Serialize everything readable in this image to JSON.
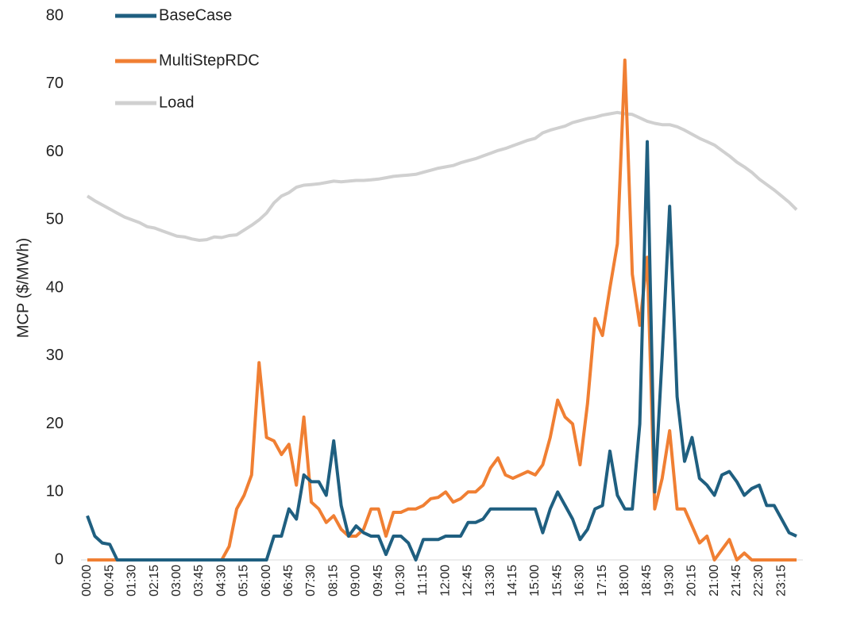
{
  "chart_data": {
    "type": "line",
    "y_label": "MCP ($/MWh)",
    "categories": [
      "00:00",
      null,
      null,
      "00:45",
      null,
      null,
      "01:30",
      null,
      null,
      "02:15",
      null,
      null,
      "03:00",
      null,
      null,
      "03:45",
      null,
      null,
      "04:30",
      null,
      null,
      "05:15",
      null,
      null,
      "06:00",
      null,
      null,
      "06:45",
      null,
      null,
      "07:30",
      null,
      null,
      "08:15",
      null,
      null,
      "09:00",
      null,
      null,
      "09:45",
      null,
      null,
      "10:30",
      null,
      null,
      "11:15",
      null,
      null,
      "12:00",
      null,
      null,
      "12:45",
      null,
      null,
      "13:30",
      null,
      null,
      "14:15",
      null,
      null,
      "15:00",
      null,
      null,
      "15:45",
      null,
      null,
      "16:30",
      null,
      null,
      "17:15",
      null,
      null,
      "18:00",
      null,
      null,
      "18:45",
      null,
      null,
      "19:30",
      null,
      null,
      "20:15",
      null,
      null,
      "21:00",
      null,
      null,
      "21:45",
      null,
      null,
      "22:30",
      null,
      null,
      "23:15",
      null,
      null
    ],
    "series": [
      {
        "name": "BaseCase",
        "color": "#1f5f80",
        "values": [
          6.5,
          3.5,
          2.5,
          2.3,
          0,
          0,
          0,
          0,
          0,
          0,
          0,
          0,
          0,
          0,
          0,
          0,
          0,
          0,
          0,
          0,
          0,
          0,
          0,
          0,
          0,
          3.5,
          3.5,
          7.5,
          6,
          12.5,
          11.5,
          11.5,
          9.5,
          17.5,
          8,
          3.5,
          5,
          4,
          3.5,
          3.5,
          0.8,
          3.5,
          3.5,
          2.5,
          0,
          3,
          3,
          3,
          3.5,
          3.5,
          3.5,
          5.5,
          5.5,
          6,
          7.5,
          7.5,
          7.5,
          7.5,
          7.5,
          7.5,
          7.5,
          4,
          7.5,
          10,
          8,
          6,
          3,
          4.5,
          7.5,
          8,
          16,
          9.5,
          7.5,
          7.5,
          20,
          61.5,
          10,
          30,
          52,
          24,
          14.5,
          18,
          12,
          11,
          9.5,
          12.5,
          13,
          11.5,
          9.5,
          10.5,
          11,
          8,
          8,
          6,
          4,
          3.5
        ]
      },
      {
        "name": "MultiStepRDC",
        "color": "#f07f33",
        "values": [
          0,
          0,
          0,
          0,
          0,
          0,
          0,
          0,
          0,
          0,
          0,
          0,
          0,
          0,
          0,
          0,
          0,
          0,
          0,
          2,
          7.5,
          9.5,
          12.5,
          29,
          18,
          17.5,
          15.5,
          17,
          11,
          21,
          8.5,
          7.5,
          5.5,
          6.5,
          4.5,
          3.5,
          3.5,
          4.5,
          7.5,
          7.5,
          3.5,
          7,
          7,
          7.5,
          7.5,
          8,
          9,
          9.2,
          10,
          8.5,
          9,
          10,
          10,
          11,
          13.5,
          15,
          12.5,
          12,
          12.5,
          13,
          12.5,
          14,
          18,
          23.5,
          21,
          20,
          14,
          23,
          35.5,
          33,
          40,
          46.5,
          73.5,
          42,
          34.5,
          44.5,
          7.5,
          12,
          19,
          7.5,
          7.5,
          5,
          2.5,
          3.5,
          0,
          1.5,
          3,
          0,
          1,
          0,
          0,
          0,
          0,
          0,
          0,
          0
        ]
      },
      {
        "name": "Load",
        "color": "#d0d0d0",
        "values": [
          53.5,
          52.8,
          52.2,
          51.6,
          51,
          50.4,
          50,
          49.6,
          49,
          48.8,
          48.4,
          48,
          47.6,
          47.5,
          47.2,
          47,
          47.1,
          47.5,
          47.4,
          47.7,
          47.8,
          48.5,
          49.2,
          50,
          51,
          52.5,
          53.5,
          54,
          54.8,
          55.1,
          55.2,
          55.3,
          55.5,
          55.7,
          55.6,
          55.7,
          55.8,
          55.8,
          55.9,
          56,
          56.2,
          56.4,
          56.5,
          56.6,
          56.7,
          57,
          57.3,
          57.6,
          57.8,
          58,
          58.4,
          58.7,
          59,
          59.4,
          59.8,
          60.2,
          60.5,
          60.9,
          61.3,
          61.7,
          62,
          62.8,
          63.2,
          63.5,
          63.8,
          64.3,
          64.6,
          64.9,
          65.1,
          65.4,
          65.6,
          65.8,
          65.6,
          65.5,
          65,
          64.5,
          64.2,
          64,
          64,
          63.7,
          63.2,
          62.6,
          62,
          61.5,
          61,
          60.2,
          59.4,
          58.5,
          57.8,
          57,
          56,
          55.2,
          54.4,
          53.5,
          52.6,
          51.5
        ]
      }
    ],
    "ylim": [
      0,
      80
    ],
    "yticks": [
      0,
      10,
      20,
      30,
      40,
      50,
      60,
      70,
      80
    ],
    "grid": false,
    "legend": "upper left"
  }
}
